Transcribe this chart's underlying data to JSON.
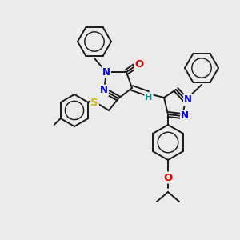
{
  "bg_color": "#ebebeb",
  "bond_color": "#1a1a1a",
  "bond_width": 1.4,
  "atom_colors": {
    "N": "#0000ee",
    "O": "#dd0000",
    "S": "#ccbb00",
    "H": "#008888",
    "C": "#1a1a1a"
  },
  "font_size_atom": 8.5,
  "fig_size": [
    3.0,
    3.0
  ],
  "dpi": 100
}
